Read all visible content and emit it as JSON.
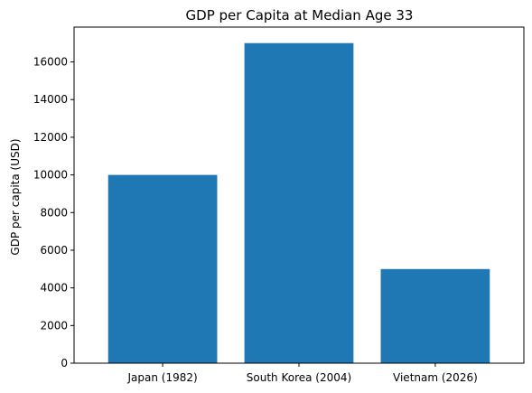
{
  "chart_data": {
    "type": "bar",
    "title": "GDP per Capita at Median Age 33",
    "xlabel": "",
    "ylabel": "GDP per capita (USD)",
    "categories": [
      "Japan (1982)",
      "South Korea (2004)",
      "Vietnam (2026)"
    ],
    "values": [
      10000,
      17000,
      5000
    ],
    "ylim": [
      0,
      17850
    ],
    "yticks": [
      0,
      2000,
      4000,
      6000,
      8000,
      10000,
      12000,
      14000,
      16000
    ],
    "bar_color": "#1f77b4",
    "grid": false,
    "legend": "none"
  }
}
